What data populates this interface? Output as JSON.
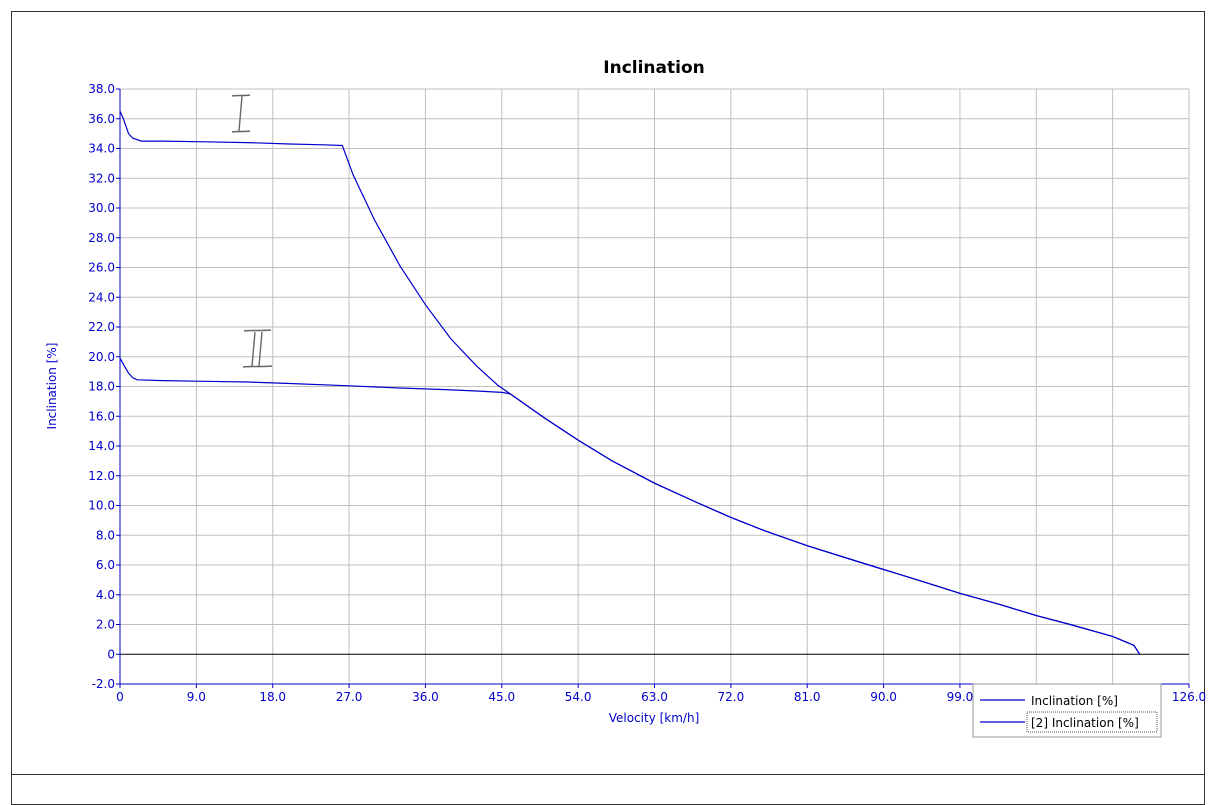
{
  "chart_data": {
    "type": "line",
    "title": "Inclination",
    "xlabel": "Velocity [km/h]",
    "ylabel": "Inclination [%]",
    "xlim": [
      0,
      126
    ],
    "ylim": [
      -2,
      38
    ],
    "x_ticks": [
      0,
      9,
      18,
      27,
      36,
      45,
      54,
      63,
      72,
      81,
      90,
      99,
      108,
      117,
      126
    ],
    "x_tick_labels": [
      "0",
      "9.0",
      "18.0",
      "27.0",
      "36.0",
      "45.0",
      "54.0",
      "63.0",
      "72.0",
      "81.0",
      "90.0",
      "99.0",
      "108.0",
      "117.0",
      "126.0"
    ],
    "y_ticks": [
      -2,
      0,
      2,
      4,
      6,
      8,
      10,
      12,
      14,
      16,
      18,
      20,
      22,
      24,
      26,
      28,
      30,
      32,
      34,
      36,
      38
    ],
    "y_tick_labels": [
      "-2.0",
      "0",
      "2.0",
      "4.0",
      "6.0",
      "8.0",
      "10.0",
      "12.0",
      "14.0",
      "16.0",
      "18.0",
      "20.0",
      "22.0",
      "24.0",
      "26.0",
      "28.0",
      "30.0",
      "32.0",
      "34.0",
      "36.0",
      "38.0"
    ],
    "grid": true,
    "legend_position": "bottom-right",
    "series": [
      {
        "name": "Inclination [%]",
        "color": "#0000cc",
        "x": [
          0,
          0.4,
          1,
          1.5,
          2.5,
          5,
          10,
          15,
          20,
          24,
          26.2,
          27.5,
          30,
          33,
          36,
          39,
          42,
          44.5,
          46,
          50,
          54,
          58,
          63,
          68,
          72,
          76,
          81,
          86,
          90,
          94,
          99,
          104,
          108,
          112,
          117,
          119.5,
          120.2
        ],
        "y": [
          36.5,
          36.0,
          35.0,
          34.7,
          34.5,
          34.5,
          34.45,
          34.4,
          34.3,
          34.25,
          34.2,
          32.2,
          29.2,
          26.1,
          23.5,
          21.2,
          19.4,
          18.1,
          17.5,
          15.9,
          14.4,
          13.0,
          11.5,
          10.2,
          9.2,
          8.3,
          7.3,
          6.4,
          5.7,
          5.0,
          4.1,
          3.3,
          2.6,
          2.0,
          1.2,
          0.6,
          0.0
        ]
      },
      {
        "name": "[2] Inclination [%]",
        "color": "#0000cc",
        "x": [
          0,
          0.5,
          1,
          1.5,
          2,
          5,
          10,
          15,
          20,
          27,
          33,
          38,
          42,
          45,
          46,
          50,
          54,
          58,
          63,
          68,
          72,
          76,
          81,
          86,
          90,
          94,
          99,
          104,
          108,
          112,
          117,
          119.5,
          120.2
        ],
        "y": [
          19.9,
          19.4,
          18.9,
          18.6,
          18.45,
          18.4,
          18.35,
          18.3,
          18.2,
          18.05,
          17.9,
          17.8,
          17.7,
          17.6,
          17.5,
          15.9,
          14.4,
          13.0,
          11.5,
          10.2,
          9.2,
          8.3,
          7.3,
          6.4,
          5.7,
          5.0,
          4.1,
          3.3,
          2.6,
          2.0,
          1.2,
          0.6,
          0.0
        ]
      }
    ]
  }
}
